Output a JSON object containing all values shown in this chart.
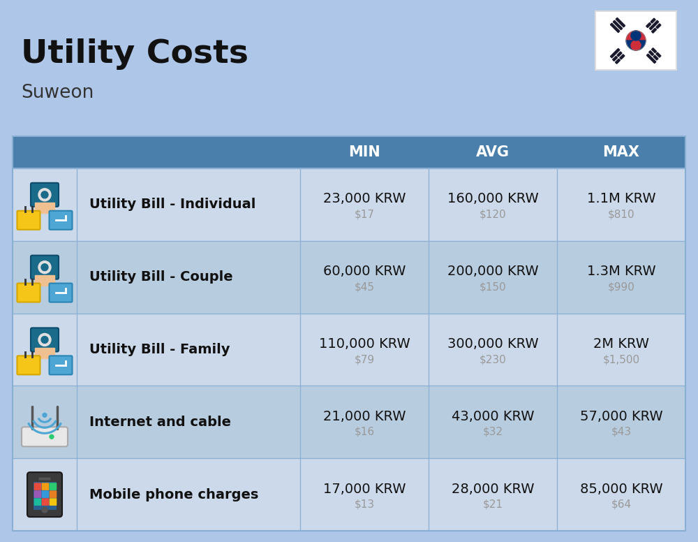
{
  "title": "Utility Costs",
  "subtitle": "Suweon",
  "background_color": "#aec6e8",
  "header_bg_color": "#4a7fab",
  "header_text_color": "#ffffff",
  "row_bg_color_even": "#ccd9ea",
  "row_bg_color_odd": "#b8ccdf",
  "divider_color": "#8aafd4",
  "headers": [
    "MIN",
    "AVG",
    "MAX"
  ],
  "rows": [
    {
      "label": "Utility Bill - Individual",
      "icon": "utility",
      "min_krw": "23,000 KRW",
      "min_usd": "$17",
      "avg_krw": "160,000 KRW",
      "avg_usd": "$120",
      "max_krw": "1.1M KRW",
      "max_usd": "$810"
    },
    {
      "label": "Utility Bill - Couple",
      "icon": "utility",
      "min_krw": "60,000 KRW",
      "min_usd": "$45",
      "avg_krw": "200,000 KRW",
      "avg_usd": "$150",
      "max_krw": "1.3M KRW",
      "max_usd": "$990"
    },
    {
      "label": "Utility Bill - Family",
      "icon": "utility",
      "min_krw": "110,000 KRW",
      "min_usd": "$79",
      "avg_krw": "300,000 KRW",
      "avg_usd": "$230",
      "max_krw": "2M KRW",
      "max_usd": "$1,500"
    },
    {
      "label": "Internet and cable",
      "icon": "internet",
      "min_krw": "21,000 KRW",
      "min_usd": "$16",
      "avg_krw": "43,000 KRW",
      "avg_usd": "$32",
      "max_krw": "57,000 KRW",
      "max_usd": "$43"
    },
    {
      "label": "Mobile phone charges",
      "icon": "mobile",
      "min_krw": "17,000 KRW",
      "min_usd": "$13",
      "avg_krw": "28,000 KRW",
      "avg_usd": "$21",
      "max_krw": "85,000 KRW",
      "max_usd": "$64"
    }
  ],
  "title_fontsize": 34,
  "subtitle_fontsize": 19,
  "header_fontsize": 15,
  "label_fontsize": 14,
  "value_fontsize": 14,
  "usd_fontsize": 11
}
